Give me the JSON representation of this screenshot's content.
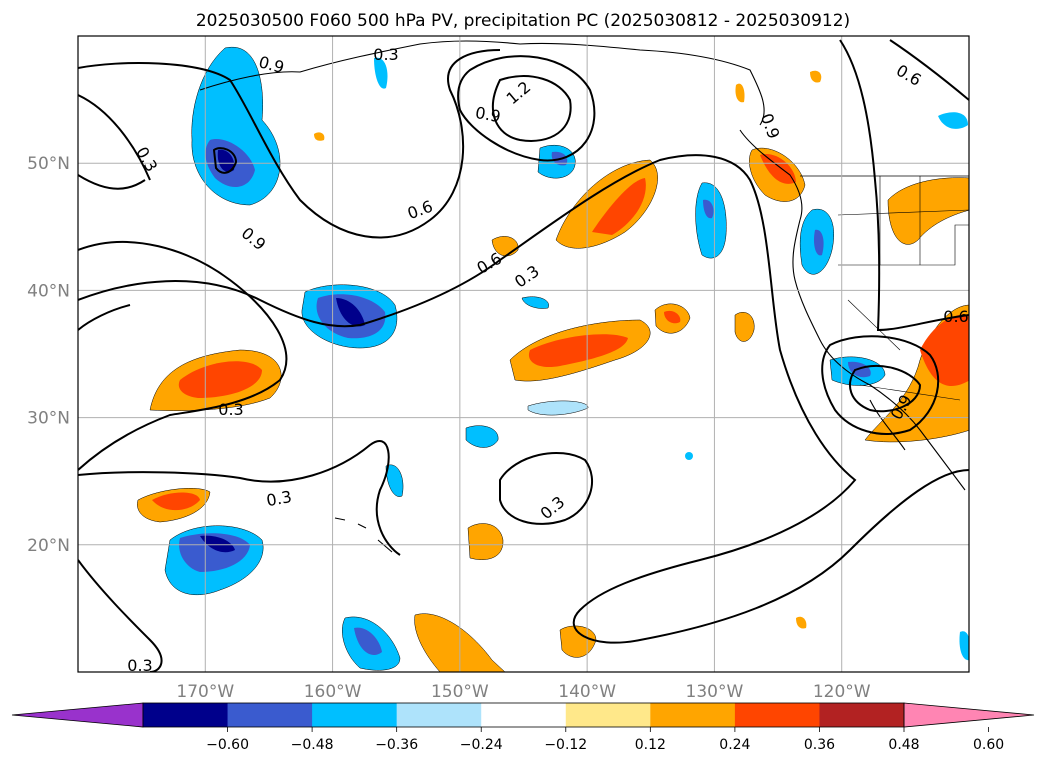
{
  "chart_data": {
    "type": "map",
    "title": "2025030500 F060 500 hPa PV, precipitation PC (2025030812 - 2025030912)",
    "lon_ticks": [
      "170°W",
      "160°W",
      "150°W",
      "140°W",
      "130°W",
      "120°W"
    ],
    "lat_ticks": [
      "50°N",
      "40°N",
      "30°N",
      "20°N"
    ],
    "lon_range": [
      -180,
      -110
    ],
    "lat_range": [
      10,
      60
    ],
    "colorbar": {
      "ticks": [
        "−0.60",
        "−0.48",
        "−0.36",
        "−0.24",
        "−0.12",
        "0.12",
        "0.24",
        "0.36",
        "0.48",
        "0.60"
      ],
      "colors": [
        "#9932cc",
        "#00008b",
        "#3a5bcf",
        "#00bfff",
        "#aee3fb",
        "#ffffff",
        "#ffe88a",
        "#ffa500",
        "#ff4500",
        "#b22222",
        "#ff85b3"
      ],
      "extend": "both"
    },
    "contour_labels": [
      "0.9",
      "0.9",
      "1.2",
      "0.9",
      "0.3",
      "0.6",
      "0.9",
      "0.6",
      "0.3",
      "0.3",
      "0.3",
      "0.3",
      "0.3",
      "0.3",
      "0.6",
      "0.6",
      "0.9"
    ],
    "filled_regions": [
      {
        "sign": "neg",
        "center": [
          -168,
          50
        ]
      },
      {
        "sign": "neg",
        "center": [
          -157,
          38
        ]
      },
      {
        "sign": "neg",
        "center": [
          -169,
          19
        ]
      },
      {
        "sign": "neg",
        "center": [
          -157,
          12
        ]
      },
      {
        "sign": "neg",
        "center": [
          -131,
          43
        ]
      },
      {
        "sign": "neg",
        "center": [
          -142,
          51
        ]
      },
      {
        "sign": "neg",
        "center": [
          -121,
          43
        ]
      },
      {
        "sign": "neg",
        "center": [
          -118,
          34
        ]
      },
      {
        "sign": "pos",
        "center": [
          -167,
          33
        ]
      },
      {
        "sign": "pos",
        "center": [
          -144,
          35
        ]
      },
      {
        "sign": "pos",
        "center": [
          -139,
          46
        ]
      },
      {
        "sign": "pos",
        "center": [
          -170,
          23
        ]
      },
      {
        "sign": "pos",
        "center": [
          -114,
          35
        ]
      },
      {
        "sign": "pos",
        "center": [
          -112,
          46
        ]
      },
      {
        "sign": "pos",
        "center": [
          -125,
          49
        ]
      },
      {
        "sign": "pos",
        "center": [
          -149,
          12
        ]
      }
    ]
  }
}
